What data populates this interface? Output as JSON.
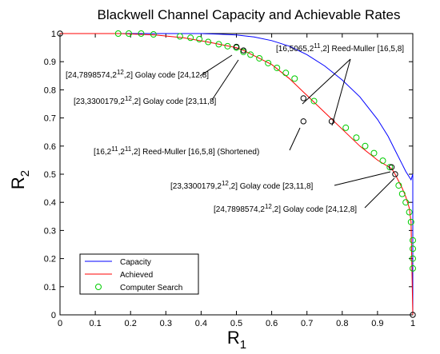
{
  "chart_data": {
    "type": "line",
    "title": "Blackwell Channel Capacity and Achievable Rates",
    "xlabel": {
      "base": "R",
      "sub": "1"
    },
    "ylabel": {
      "base": "R",
      "sub": "2"
    },
    "xlim": [
      0,
      1
    ],
    "ylim": [
      0,
      1
    ],
    "xticks": [
      "0",
      "0.1",
      "0.2",
      "0.3",
      "0.4",
      "0.5",
      "0.6",
      "0.7",
      "0.8",
      "0.9",
      "1"
    ],
    "yticks": [
      "0",
      "0.1",
      "0.2",
      "0.3",
      "0.4",
      "0.5",
      "0.6",
      "0.7",
      "0.8",
      "0.9",
      "1"
    ],
    "grid": false,
    "legend_position": "bottom-left",
    "series": [
      {
        "name": "Capacity",
        "style": "line",
        "color": "#0000ff",
        "points": [
          [
            0,
            1
          ],
          [
            0.2,
            1
          ],
          [
            0.3,
            1
          ],
          [
            0.4,
            1
          ],
          [
            0.45,
            0.998
          ],
          [
            0.5,
            0.995
          ],
          [
            0.55,
            0.988
          ],
          [
            0.6,
            0.975
          ],
          [
            0.65,
            0.955
          ],
          [
            0.7,
            0.925
          ],
          [
            0.75,
            0.885
          ],
          [
            0.8,
            0.835
          ],
          [
            0.85,
            0.775
          ],
          [
            0.9,
            0.695
          ],
          [
            0.93,
            0.635
          ],
          [
            0.95,
            0.585
          ],
          [
            0.97,
            0.535
          ],
          [
            0.98,
            0.51
          ],
          [
            0.99,
            0.49
          ],
          [
            0.995,
            0.48
          ],
          [
            1,
            0.5
          ],
          [
            1,
            0
          ]
        ]
      },
      {
        "name": "Achieved",
        "style": "line",
        "color": "#ff0000",
        "points": [
          [
            0,
            1
          ],
          [
            0.1,
            1
          ],
          [
            0.17,
            1
          ],
          [
            0.27,
            0.995
          ],
          [
            0.35,
            0.985
          ],
          [
            0.42,
            0.97
          ],
          [
            0.5,
            0.95
          ],
          [
            0.52,
            0.94
          ],
          [
            0.6,
            0.89
          ],
          [
            0.65,
            0.84
          ],
          [
            0.7,
            0.78
          ],
          [
            0.75,
            0.72
          ],
          [
            0.8,
            0.66
          ],
          [
            0.85,
            0.6
          ],
          [
            0.9,
            0.55
          ],
          [
            0.94,
            0.52
          ],
          [
            0.95,
            0.5
          ],
          [
            0.97,
            0.45
          ],
          [
            0.98,
            0.42
          ],
          [
            0.99,
            0.38
          ],
          [
            0.995,
            0.33
          ],
          [
            1,
            0
          ]
        ]
      },
      {
        "name": "Computer Search",
        "style": "markers",
        "color": "#00cc00",
        "points": [
          [
            0.165,
            1
          ],
          [
            0.195,
            1
          ],
          [
            0.23,
            1
          ],
          [
            0.265,
            0.997
          ],
          [
            0.34,
            0.99
          ],
          [
            0.37,
            0.985
          ],
          [
            0.395,
            0.98
          ],
          [
            0.42,
            0.97
          ],
          [
            0.45,
            0.962
          ],
          [
            0.475,
            0.955
          ],
          [
            0.5,
            0.95
          ],
          [
            0.52,
            0.935
          ],
          [
            0.54,
            0.925
          ],
          [
            0.565,
            0.912
          ],
          [
            0.59,
            0.895
          ],
          [
            0.615,
            0.878
          ],
          [
            0.64,
            0.86
          ],
          [
            0.665,
            0.84
          ],
          [
            0.72,
            0.76
          ],
          [
            0.81,
            0.665
          ],
          [
            0.84,
            0.63
          ],
          [
            0.865,
            0.6
          ],
          [
            0.89,
            0.575
          ],
          [
            0.915,
            0.548
          ],
          [
            0.935,
            0.525
          ],
          [
            0.96,
            0.46
          ],
          [
            0.97,
            0.43
          ],
          [
            0.98,
            0.4
          ],
          [
            0.99,
            0.365
          ],
          [
            0.995,
            0.33
          ],
          [
            1,
            0.265
          ],
          [
            1,
            0.235
          ],
          [
            1,
            0.2
          ],
          [
            1,
            0.165
          ]
        ]
      },
      {
        "name": "",
        "style": "open-circles",
        "color": "#000000",
        "points": [
          [
            0,
            1
          ],
          [
            0.5,
            0.953
          ],
          [
            0.52,
            0.94
          ],
          [
            0.69,
            0.77
          ],
          [
            0.69,
            0.688
          ],
          [
            0.77,
            0.688
          ],
          [
            0.94,
            0.525
          ],
          [
            0.95,
            0.5
          ],
          [
            1,
            0
          ]
        ]
      }
    ],
    "annotations": [
      {
        "parts": [
          [
            "n",
            "[24,7898574,2"
          ],
          [
            "s",
            "12"
          ],
          [
            "n",
            ",2] Golay code [24,12,8]"
          ]
        ],
        "target": [
          0.5,
          0.953
        ]
      },
      {
        "parts": [
          [
            "n",
            "[23,3300179,2"
          ],
          [
            "s",
            "12"
          ],
          [
            "n",
            ",2] Golay code [23,11,8]"
          ]
        ],
        "target": [
          0.52,
          0.94
        ]
      },
      {
        "parts": [
          [
            "n",
            "[16,5065,2"
          ],
          [
            "s",
            "11"
          ],
          [
            "n",
            ",2] Reed-Muller [16,5,8]"
          ]
        ],
        "targets": [
          [
            0.69,
            0.77
          ],
          [
            0.77,
            0.688
          ]
        ]
      },
      {
        "parts": [
          [
            "n",
            "[16,2"
          ],
          [
            "s",
            "11"
          ],
          [
            "n",
            ",2"
          ],
          [
            "s",
            "11"
          ],
          [
            "n",
            ",2] Reed-Muller [16,5,8] (Shortened)"
          ]
        ],
        "target": [
          0.69,
          0.688
        ]
      },
      {
        "parts": [
          [
            "n",
            "[23,3300179,2"
          ],
          [
            "s",
            "12"
          ],
          [
            "n",
            ",2] Golay code [23,11,8]"
          ]
        ],
        "target": [
          0.94,
          0.525
        ]
      },
      {
        "parts": [
          [
            "n",
            "[24,7898574,2"
          ],
          [
            "s",
            "12"
          ],
          [
            "n",
            ",2] Golay code [24,12,8]"
          ]
        ],
        "target": [
          0.95,
          0.5
        ]
      }
    ]
  }
}
